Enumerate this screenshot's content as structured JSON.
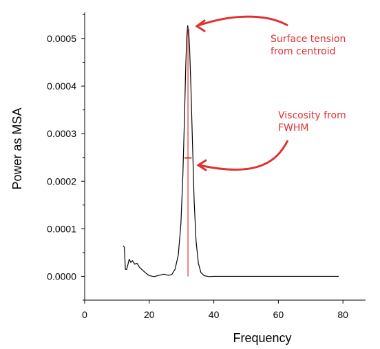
{
  "chart_data": {
    "type": "line",
    "xlabel": "Frequency",
    "ylabel": "Power as MSA",
    "xlim": [
      0,
      87
    ],
    "ylim": [
      -5e-05,
      0.000555
    ],
    "x_ticks": [
      0,
      20,
      40,
      60,
      80
    ],
    "x_tick_labels": [
      "0",
      "20",
      "40",
      "60",
      "80"
    ],
    "y_ticks": [
      0,
      0.0001,
      0.0002,
      0.0003,
      0.0004,
      0.0005
    ],
    "y_tick_labels": [
      "0.0000",
      "0.0001",
      "0.0002",
      "0.0003",
      "0.0004",
      "0.0005"
    ],
    "grid": false,
    "series": [
      {
        "color": "#000000",
        "points": [
          [
            12.0,
            6.45e-05
          ],
          [
            12.3,
            6.05e-05
          ],
          [
            12.6,
            1.5e-05
          ],
          [
            13.0,
            1.45e-05
          ],
          [
            13.4,
            2.5e-05
          ],
          [
            13.8,
            3.6e-05
          ],
          [
            14.3,
            2.9e-05
          ],
          [
            14.8,
            3.3e-05
          ],
          [
            15.5,
            2.55e-05
          ],
          [
            16.2,
            2.75e-05
          ],
          [
            17.0,
            1.9e-05
          ],
          [
            18.0,
            1.25e-05
          ],
          [
            19.0,
            6.5e-06
          ],
          [
            20.0,
            1.5e-06
          ],
          [
            21.5,
            -5e-07
          ],
          [
            23.0,
            2e-06
          ],
          [
            24.5,
            4.5e-06
          ],
          [
            26.0,
            2e-06
          ],
          [
            27.0,
            4e-06
          ],
          [
            28.0,
            1.5e-05
          ],
          [
            29.0,
            4.5e-05
          ],
          [
            29.8,
            0.00011
          ],
          [
            30.4,
            0.00021
          ],
          [
            30.9,
            0.00033
          ],
          [
            31.3,
            0.00044
          ],
          [
            31.6,
            0.0005
          ],
          [
            31.9,
            0.000527
          ],
          [
            32.2,
            0.000518
          ],
          [
            32.5,
            0.00048
          ],
          [
            32.9,
            0.0004
          ],
          [
            33.4,
            0.00028
          ],
          [
            33.9,
            0.00016
          ],
          [
            34.5,
            7.5e-05
          ],
          [
            35.2,
            2.8e-05
          ],
          [
            36.0,
            8e-06
          ],
          [
            37.0,
            1.5e-06
          ],
          [
            38.5,
            -5e-07
          ],
          [
            40.0,
            0.0
          ],
          [
            50.0,
            0.0
          ],
          [
            60.0,
            0.0
          ],
          [
            70.0,
            0.0
          ],
          [
            78.7,
            0.0
          ]
        ]
      }
    ],
    "annotations": [
      {
        "text_lines": [
          "Surface tension",
          "from centroid"
        ],
        "color": "#e03030"
      },
      {
        "text_lines": [
          "Viscosity from",
          "FWHM"
        ],
        "color": "#e03030"
      }
    ],
    "markers": {
      "centroid_x": 32.0,
      "fwhm_y": 0.000249,
      "fwhm_x_range": [
        30.9,
        33.1
      ],
      "color": "#e03030"
    }
  }
}
